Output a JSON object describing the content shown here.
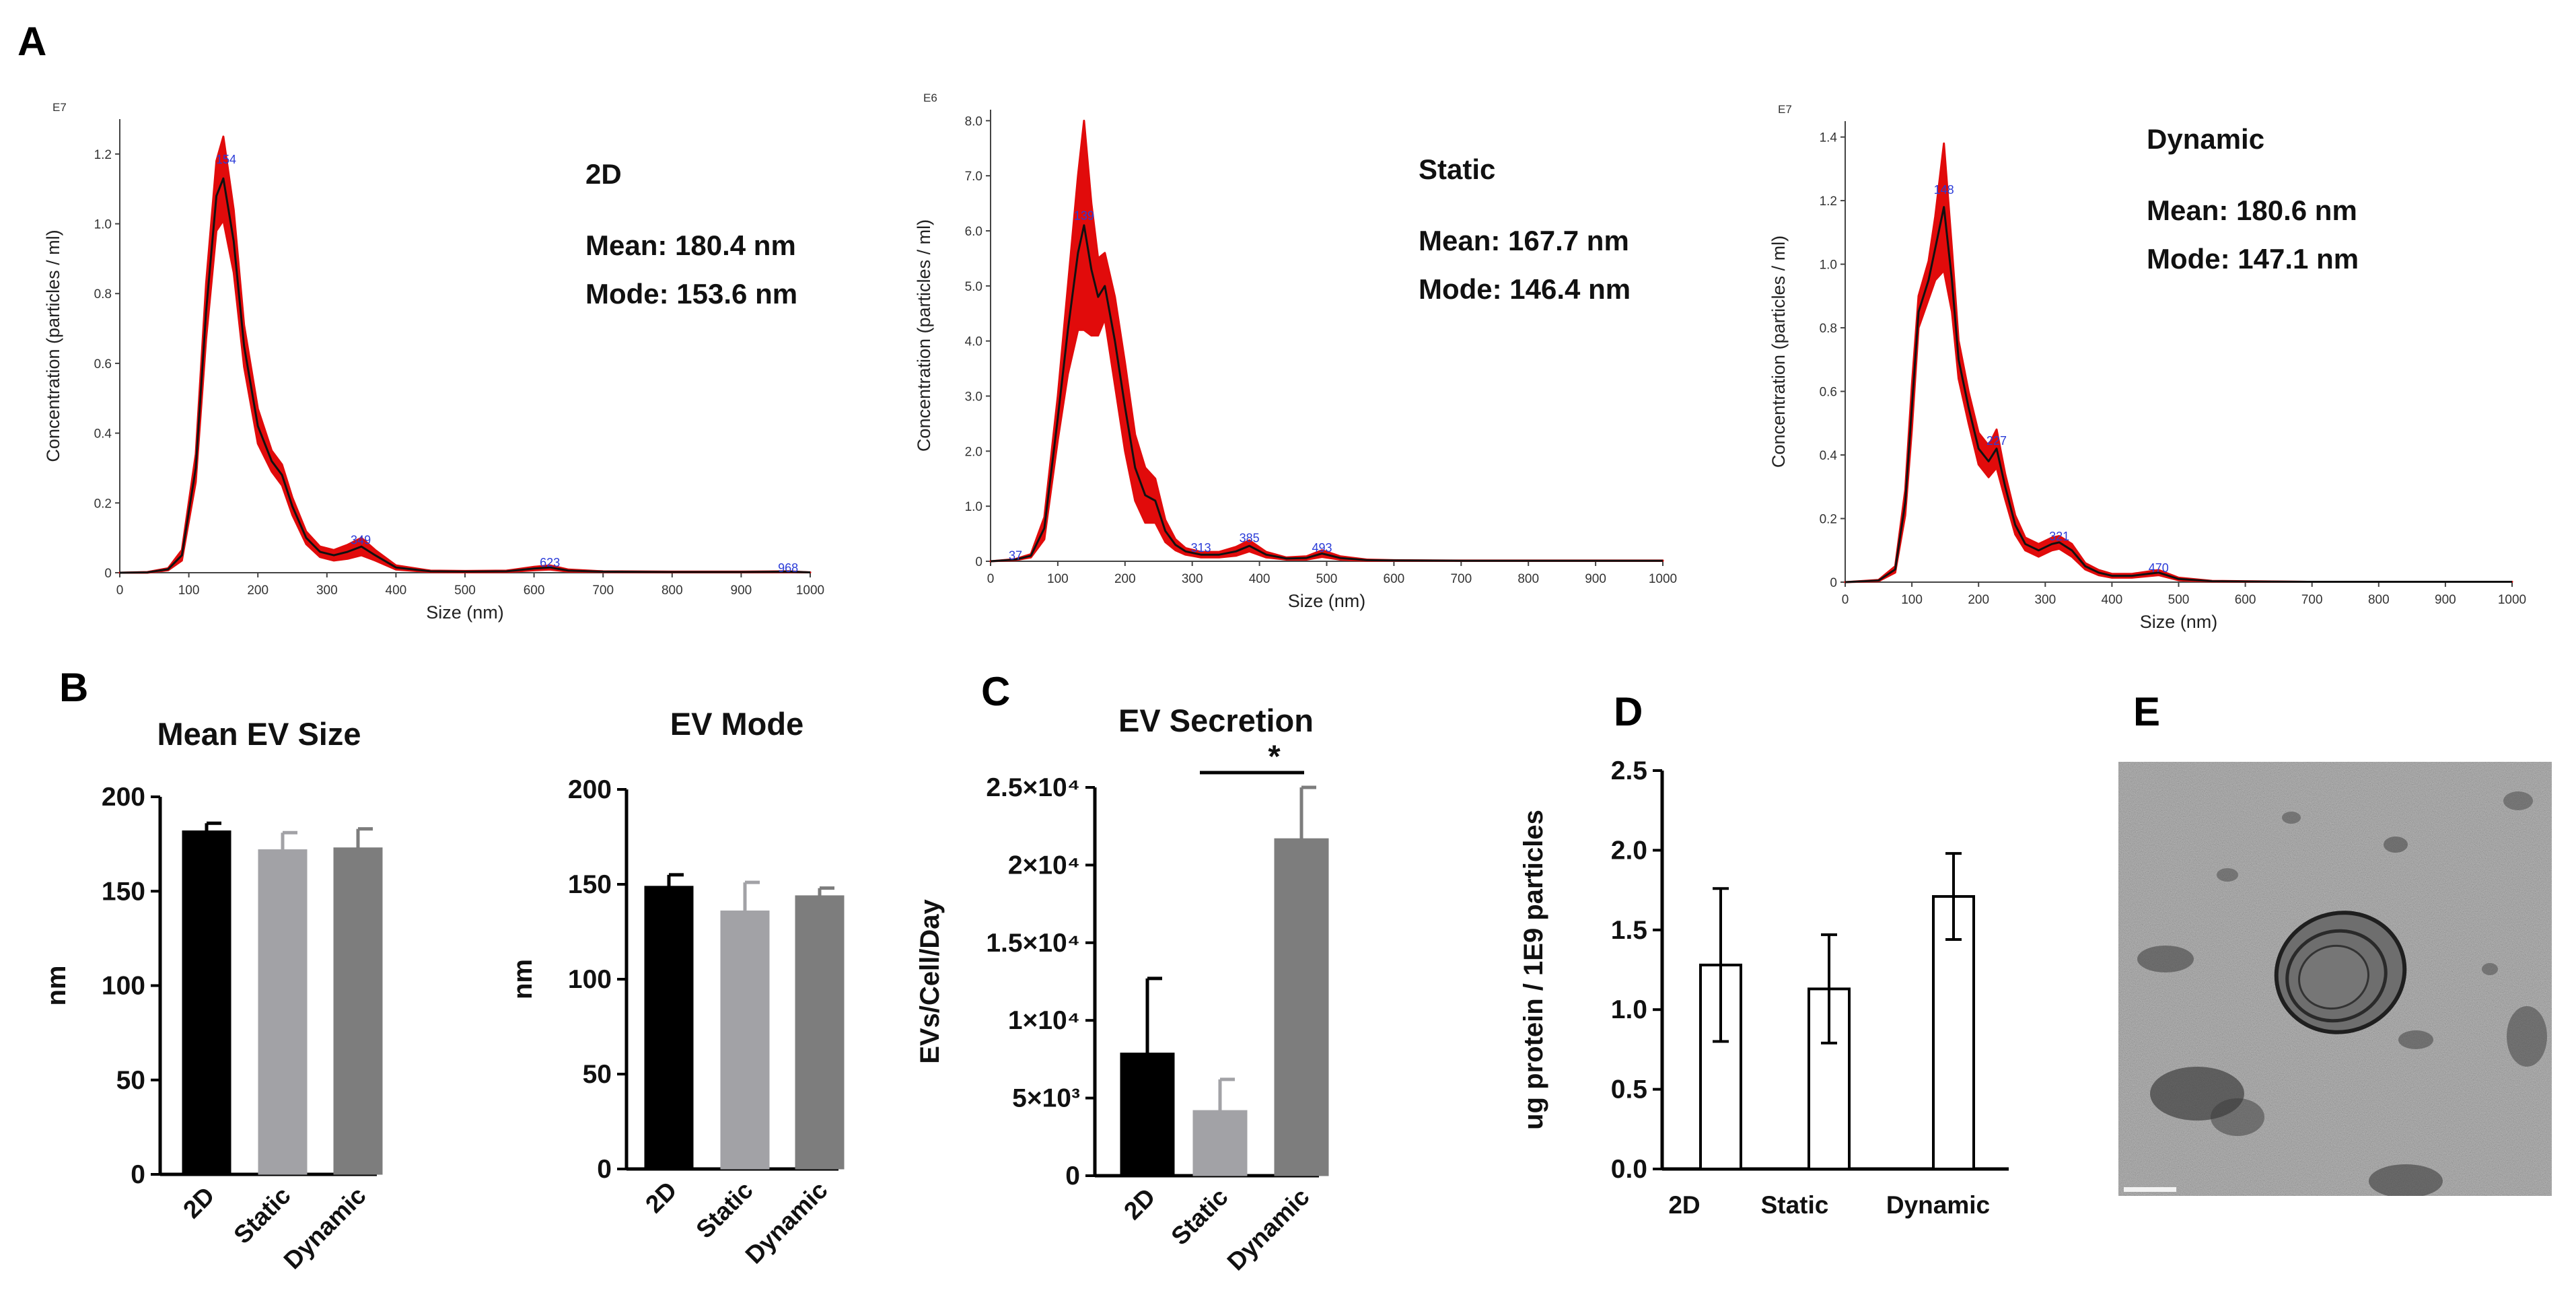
{
  "panel_labels": {
    "a": "A",
    "b": "B",
    "c": "C",
    "d": "D",
    "e": "E"
  },
  "colors": {
    "band": "#e10b0b",
    "line": "#111111",
    "peak": "#2a3bd8",
    "bar_2d": "#000000",
    "bar_static": "#a2a2a6",
    "bar_dynamic": "#7d7d7d"
  },
  "chart_data": [
    {
      "id": "nta_2d",
      "type": "line",
      "title": "2D",
      "mean_text": "Mean: 180.4 nm",
      "mode_text": "Mode: 153.6 nm",
      "xlabel": "Size (nm)",
      "ylabel": "Concentration (particles / ml)",
      "y_exponent": "E7",
      "xlim": [
        0,
        1000
      ],
      "ylim": [
        0,
        1.3
      ],
      "xticks": [
        0,
        100,
        200,
        300,
        400,
        500,
        600,
        700,
        800,
        900,
        1000
      ],
      "yticks": [
        0,
        0.2,
        0.4,
        0.6,
        0.8,
        1.0,
        1.2
      ],
      "ytick_labels": [
        "0",
        "0.2",
        "0.4",
        "0.6",
        "0.8",
        "1.0",
        "1.2"
      ],
      "x": [
        0,
        40,
        70,
        90,
        110,
        125,
        140,
        150,
        165,
        180,
        200,
        220,
        235,
        250,
        270,
        290,
        310,
        330,
        350,
        370,
        400,
        450,
        500,
        560,
        600,
        623,
        650,
        700,
        800,
        900,
        968,
        1000
      ],
      "y": [
        0,
        0.001,
        0.01,
        0.05,
        0.3,
        0.75,
        1.08,
        1.13,
        0.95,
        0.65,
        0.42,
        0.32,
        0.28,
        0.19,
        0.1,
        0.06,
        0.05,
        0.06,
        0.075,
        0.05,
        0.015,
        0.004,
        0.003,
        0.004,
        0.012,
        0.015,
        0.006,
        0.003,
        0.002,
        0.002,
        0.003,
        0.001
      ],
      "band": [
        0,
        0.001,
        0.003,
        0.015,
        0.04,
        0.08,
        0.1,
        0.12,
        0.09,
        0.06,
        0.05,
        0.03,
        0.03,
        0.025,
        0.018,
        0.015,
        0.015,
        0.02,
        0.025,
        0.015,
        0.006,
        0.002,
        0.002,
        0.002,
        0.005,
        0.006,
        0.003,
        0.001,
        0.001,
        0.001,
        0.001,
        0
      ],
      "peaks": [
        {
          "label": "154",
          "x": 154,
          "y": 1.18
        },
        {
          "label": "349",
          "x": 349,
          "y": 0.09
        },
        {
          "label": "623",
          "x": 623,
          "y": 0.025
        },
        {
          "label": "968",
          "x": 968,
          "y": 0.01
        }
      ]
    },
    {
      "id": "nta_static",
      "type": "line",
      "title": "Static",
      "mean_text": "Mean: 167.7 nm",
      "mode_text": "Mode: 146.4 nm",
      "xlabel": "Size (nm)",
      "ylabel": "Concentration (particles / ml)",
      "y_exponent": "E6",
      "xlim": [
        0,
        1000
      ],
      "ylim": [
        0,
        8.2
      ],
      "xticks": [
        0,
        100,
        200,
        300,
        400,
        500,
        600,
        700,
        800,
        900,
        1000
      ],
      "yticks": [
        0,
        1,
        2,
        3,
        4,
        5,
        6,
        7,
        8
      ],
      "ytick_labels": [
        "0",
        "1.0",
        "2.0",
        "3.0",
        "4.0",
        "5.0",
        "6.0",
        "7.0",
        "8.0"
      ],
      "x": [
        0,
        37,
        60,
        80,
        100,
        115,
        130,
        139,
        150,
        160,
        170,
        185,
        200,
        215,
        230,
        245,
        260,
        275,
        290,
        313,
        340,
        365,
        385,
        410,
        440,
        470,
        493,
        520,
        560,
        600,
        700,
        800,
        900,
        1000
      ],
      "y": [
        0,
        0.03,
        0.1,
        0.6,
        2.6,
        4.2,
        5.6,
        6.1,
        5.3,
        4.8,
        5.0,
        4.0,
        2.8,
        1.7,
        1.2,
        1.1,
        0.55,
        0.3,
        0.18,
        0.12,
        0.12,
        0.18,
        0.28,
        0.12,
        0.05,
        0.06,
        0.14,
        0.06,
        0.02,
        0.015,
        0.01,
        0.01,
        0.01,
        0.01
      ],
      "band": [
        0,
        0.01,
        0.03,
        0.2,
        0.4,
        0.8,
        1.4,
        1.9,
        1.2,
        0.7,
        0.6,
        0.8,
        0.8,
        0.6,
        0.5,
        0.4,
        0.2,
        0.1,
        0.06,
        0.05,
        0.05,
        0.08,
        0.1,
        0.05,
        0.02,
        0.03,
        0.06,
        0.03,
        0.01,
        0.005,
        0.003,
        0.003,
        0.003,
        0.003
      ],
      "peaks": [
        {
          "label": "37",
          "x": 37,
          "y": 0.08
        },
        {
          "label": "139",
          "x": 139,
          "y": 6.25
        },
        {
          "label": "313",
          "x": 313,
          "y": 0.22
        },
        {
          "label": "385",
          "x": 385,
          "y": 0.4
        },
        {
          "label": "493",
          "x": 493,
          "y": 0.22
        }
      ]
    },
    {
      "id": "nta_dynamic",
      "type": "line",
      "title": "Dynamic",
      "mean_text": "Mean: 180.6 nm",
      "mode_text": "Mode: 147.1 nm",
      "xlabel": "Size (nm)",
      "ylabel": "Concentration (particles / ml)",
      "y_exponent": "E7",
      "xlim": [
        0,
        1000
      ],
      "ylim": [
        0,
        1.45
      ],
      "xticks": [
        0,
        100,
        200,
        300,
        400,
        500,
        600,
        700,
        800,
        900,
        1000
      ],
      "yticks": [
        0,
        0.2,
        0.4,
        0.6,
        0.8,
        1.0,
        1.2,
        1.4
      ],
      "ytick_labels": [
        "0",
        "0.2",
        "0.4",
        "0.6",
        "0.8",
        "1.0",
        "1.2",
        "1.4"
      ],
      "x": [
        0,
        50,
        75,
        90,
        100,
        110,
        125,
        135,
        148,
        160,
        170,
        185,
        200,
        215,
        227,
        240,
        255,
        270,
        290,
        310,
        321,
        340,
        360,
        380,
        400,
        430,
        470,
        500,
        550,
        600,
        700,
        800,
        900,
        1000
      ],
      "y": [
        0,
        0.005,
        0.04,
        0.25,
        0.55,
        0.85,
        0.95,
        1.05,
        1.18,
        0.95,
        0.7,
        0.55,
        0.42,
        0.38,
        0.42,
        0.3,
        0.18,
        0.12,
        0.1,
        0.12,
        0.125,
        0.1,
        0.05,
        0.03,
        0.02,
        0.02,
        0.03,
        0.01,
        0.003,
        0.002,
        0.001,
        0.001,
        0.001,
        0.001
      ],
      "band": [
        0,
        0.002,
        0.01,
        0.04,
        0.07,
        0.05,
        0.06,
        0.1,
        0.2,
        0.1,
        0.06,
        0.05,
        0.05,
        0.05,
        0.06,
        0.04,
        0.03,
        0.02,
        0.02,
        0.02,
        0.02,
        0.02,
        0.01,
        0.008,
        0.006,
        0.006,
        0.008,
        0.004,
        0.001,
        0.001,
        0,
        0,
        0,
        0
      ],
      "peaks": [
        {
          "label": "148",
          "x": 148,
          "y": 1.23
        },
        {
          "label": "227",
          "x": 227,
          "y": 0.44
        },
        {
          "label": "321",
          "x": 321,
          "y": 0.14
        },
        {
          "label": "470",
          "x": 470,
          "y": 0.04
        }
      ]
    },
    {
      "id": "bar_mean",
      "type": "bar",
      "title": "Mean EV Size",
      "ylabel": "nm",
      "xlabel": "",
      "categories": [
        "2D",
        "Static",
        "Dynamic"
      ],
      "values": [
        182,
        172,
        173
      ],
      "errors": [
        4,
        9,
        10
      ],
      "ylim": [
        0,
        200
      ],
      "yticks": [
        0,
        50,
        100,
        150,
        200
      ],
      "ytick_labels": [
        "0",
        "50",
        "100",
        "150",
        "200"
      ]
    },
    {
      "id": "bar_mode",
      "type": "bar",
      "title": "EV Mode",
      "ylabel": "nm",
      "xlabel": "",
      "categories": [
        "2D",
        "Static",
        "Dynamic"
      ],
      "values": [
        149,
        136,
        144
      ],
      "errors": [
        6,
        15,
        4
      ],
      "ylim": [
        0,
        200
      ],
      "yticks": [
        0,
        50,
        100,
        150,
        200
      ],
      "ytick_labels": [
        "0",
        "50",
        "100",
        "150",
        "200"
      ]
    },
    {
      "id": "bar_secretion",
      "type": "bar",
      "title": "EV Secretion",
      "ylabel": "EVs/Cell/Day",
      "xlabel": "",
      "categories": [
        "2D",
        "Static",
        "Dynamic"
      ],
      "values": [
        7900,
        4200,
        21700
      ],
      "errors": [
        4800,
        2000,
        3300
      ],
      "ylim": [
        0,
        25000
      ],
      "yticks": [
        0,
        5000,
        10000,
        15000,
        20000,
        25000
      ],
      "ytick_labels": [
        "0",
        "5×10³",
        "1×10⁴",
        "1.5×10⁴",
        "2×10⁴",
        "2.5×10⁴"
      ],
      "significance": {
        "label": "*",
        "between": [
          "Static",
          "Dynamic"
        ]
      }
    },
    {
      "id": "bar_protein",
      "type": "bar",
      "title": "",
      "ylabel": "ug protein / 1E9 particles",
      "xlabel": "",
      "categories": [
        "2D",
        "Static",
        "Dynamic"
      ],
      "values": [
        1.28,
        1.13,
        1.71
      ],
      "errors": [
        0.48,
        0.34,
        0.27
      ],
      "ylim": [
        0,
        2.5
      ],
      "yticks": [
        0,
        0.5,
        1.0,
        1.5,
        2.0,
        2.5
      ],
      "ytick_labels": [
        "0.0",
        "0.5",
        "1.0",
        "1.5",
        "2.0",
        "2.5"
      ]
    }
  ]
}
